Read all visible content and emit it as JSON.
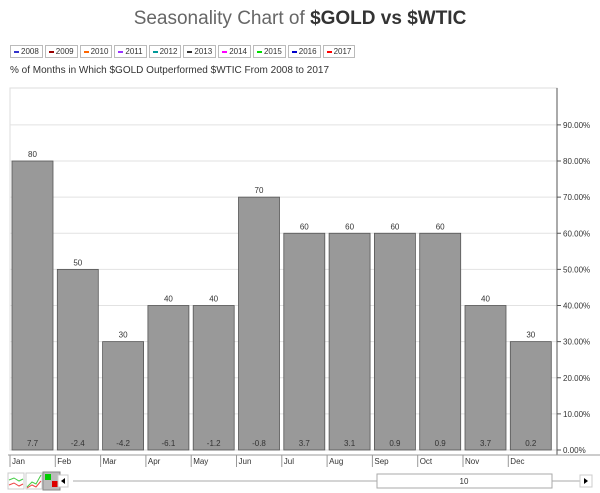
{
  "title_prefix": "Seasonality Chart of ",
  "title_main": "$GOLD vs $WTIC",
  "legend": [
    {
      "label": "2008",
      "color": "#3333cc"
    },
    {
      "label": "2009",
      "color": "#990000"
    },
    {
      "label": "2010",
      "color": "#ff6600"
    },
    {
      "label": "2011",
      "color": "#9933ff"
    },
    {
      "label": "2012",
      "color": "#009999"
    },
    {
      "label": "2013",
      "color": "#333333"
    },
    {
      "label": "2014",
      "color": "#ff00ff"
    },
    {
      "label": "2015",
      "color": "#00dd00"
    },
    {
      "label": "2016",
      "color": "#0000cc"
    },
    {
      "label": "2017",
      "color": "#ff0000"
    }
  ],
  "subtitle": "% of Months in Which $GOLD Outperformed $WTIC From 2008 to 2017",
  "slider_value": "10",
  "chart_data": {
    "type": "bar",
    "categories": [
      "Jan",
      "Feb",
      "Mar",
      "Apr",
      "May",
      "Jun",
      "Jul",
      "Aug",
      "Sep",
      "Oct",
      "Nov",
      "Dec"
    ],
    "values": [
      80,
      50,
      30,
      40,
      40,
      70,
      60,
      60,
      60,
      60,
      40,
      30
    ],
    "avg_labels": [
      "7.7",
      "-2.4",
      "-4.2",
      "-6.1",
      "-1.2",
      "-0.8",
      "3.7",
      "3.1",
      "0.9",
      "0.9",
      "3.7",
      "0.2"
    ],
    "ylim": [
      0,
      100
    ],
    "yticks": [
      "0.00%",
      "10.00%",
      "20.00%",
      "30.00%",
      "40.00%",
      "50.00%",
      "60.00%",
      "70.00%",
      "80.00%",
      "90.00%"
    ],
    "bar_color": "#999999",
    "grid": true
  }
}
